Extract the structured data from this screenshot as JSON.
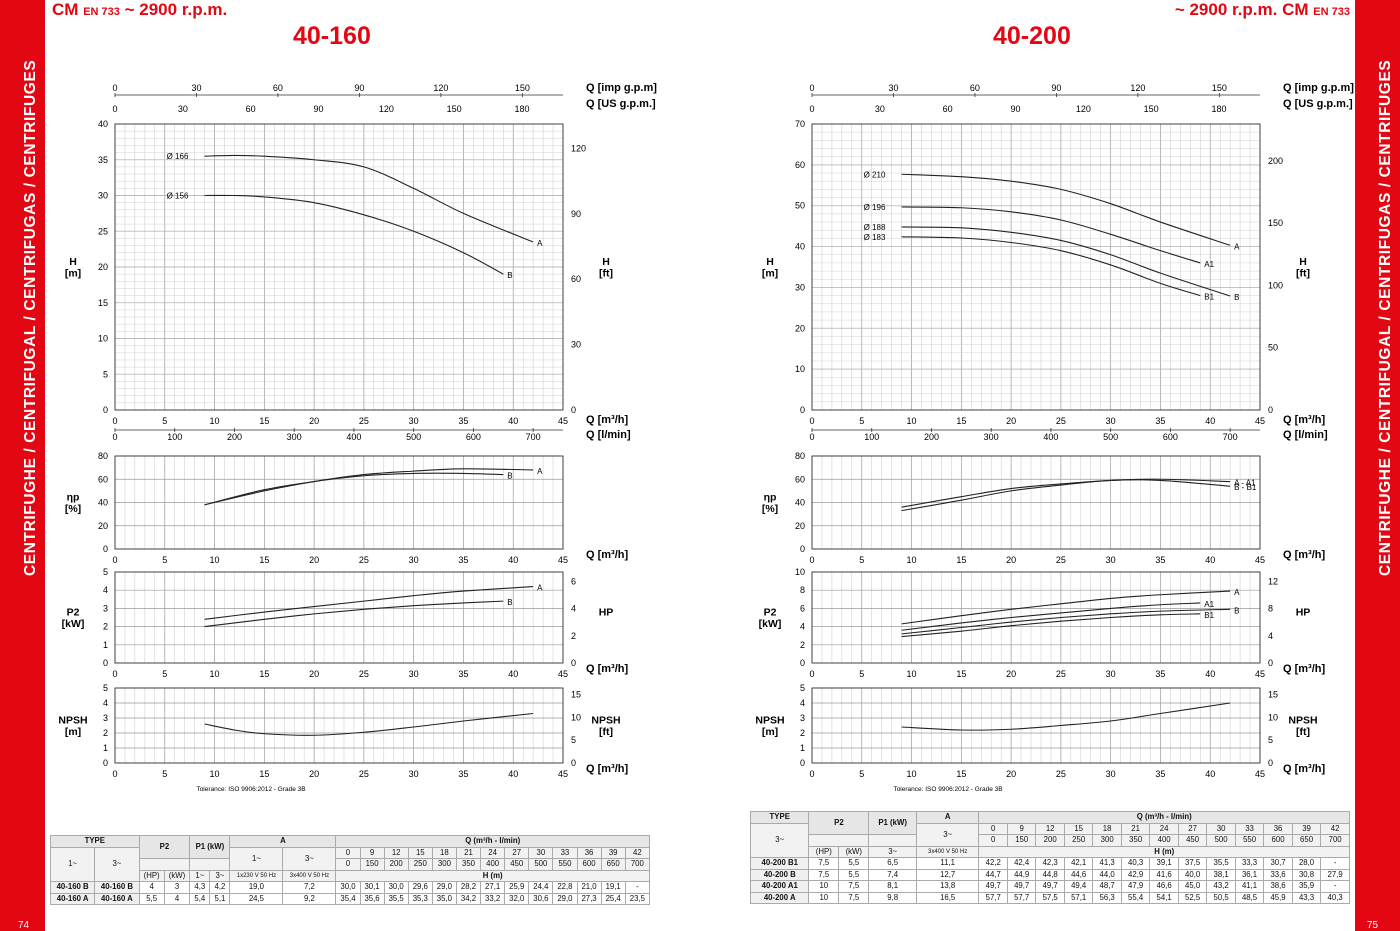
{
  "sidebar": {
    "left_text": "CENTRIFUGHE / CENTRIFUGAL / CENTRIFUGAS / CENTRIFUGES",
    "right_text": "CENTRIFUGHE / CENTRIFUGAL / CENTRIFUGAS / CENTRIFUGES",
    "left_page": "74",
    "right_page": "75"
  },
  "header": {
    "left_series": "CM",
    "left_norm": "EN 733",
    "left_speed": "~ 2900 r.p.m.",
    "right_speed": "~ 2900 r.p.m.",
    "right_series": "CM",
    "right_norm": "EN 733"
  },
  "colors": {
    "accent": "#e30613",
    "grid": "#c8c8c8",
    "curve": "#222222"
  },
  "chart_data": [
    {
      "type": "line",
      "title": "40-160",
      "top_axes": {
        "label1": "Q [imp g.p.m]",
        "ticks1": [
          "0",
          "30",
          "60",
          "90",
          "120",
          "150"
        ],
        "label2": "Q [US g.p.m.]",
        "ticks2": [
          "0",
          "30",
          "60",
          "90",
          "120",
          "150",
          "180"
        ]
      },
      "bottom_axes": {
        "label1": "Q [m³/h]",
        "label2": "Q [l/min]",
        "ticks2": [
          "0",
          "100",
          "200",
          "300",
          "400",
          "500",
          "600",
          "700"
        ]
      },
      "x_ticks": [
        "0",
        "5",
        "10",
        "15",
        "20",
        "25",
        "30",
        "35",
        "40",
        "45"
      ],
      "head": {
        "ylabel": "H\n[m]",
        "ylabel2": "H\n[ft]",
        "ylim": [
          0,
          40
        ],
        "yticks": [
          "0",
          "5",
          "10",
          "15",
          "20",
          "25",
          "30",
          "35",
          "40"
        ],
        "y2ticks": [
          "0",
          "30",
          "60",
          "90",
          "120"
        ],
        "series": [
          {
            "name": "A",
            "diam": "Ø 166",
            "x": [
              9,
              12,
              15,
              20,
              25,
              30,
              35,
              42
            ],
            "y": [
              35.5,
              35.6,
              35.5,
              35.0,
              34.0,
              31.0,
              27.5,
              23.5
            ]
          },
          {
            "name": "B",
            "diam": "Ø 156",
            "x": [
              9,
              12,
              15,
              20,
              25,
              30,
              35,
              39
            ],
            "y": [
              30.0,
              30.0,
              29.8,
              29.0,
              27.3,
              25.0,
              22.0,
              19.0
            ]
          }
        ]
      },
      "eff": {
        "ylabel": "ηp\n[%]",
        "xlabel": "Q [m³/h]",
        "ylim": [
          0,
          80
        ],
        "yticks": [
          "0",
          "20",
          "40",
          "60",
          "80"
        ],
        "series": [
          {
            "name": "A",
            "x": [
              9,
              15,
              20,
              25,
              30,
              35,
              42
            ],
            "y": [
              38,
              50,
              58,
              64,
              67,
              69,
              68
            ]
          },
          {
            "name": "B",
            "x": [
              9,
              15,
              20,
              25,
              30,
              35,
              39
            ],
            "y": [
              38,
              51,
              58,
              63,
              65,
              65,
              64
            ]
          }
        ]
      },
      "power": {
        "ylabel": "P2\n[kW]",
        "ylabel2": "HP",
        "xlabel": "Q [m³/h]",
        "ylim": [
          0,
          5
        ],
        "yticks": [
          "0",
          "1",
          "2",
          "3",
          "4",
          "5"
        ],
        "y2ticks": [
          "0",
          "2",
          "4",
          "6"
        ],
        "series": [
          {
            "name": "A",
            "x": [
              9,
              15,
              20,
              25,
              30,
              35,
              42
            ],
            "y": [
              2.4,
              2.8,
              3.1,
              3.4,
              3.7,
              3.95,
              4.2
            ]
          },
          {
            "name": "B",
            "x": [
              9,
              15,
              20,
              25,
              30,
              35,
              39
            ],
            "y": [
              2.0,
              2.4,
              2.7,
              2.95,
              3.15,
              3.3,
              3.4
            ]
          }
        ]
      },
      "npsh": {
        "ylabel": "NPSH\n[m]",
        "ylabel2": "NPSH\n[ft]",
        "xlabel": "Q [m³/h]",
        "ylim": [
          0,
          5
        ],
        "yticks": [
          "0",
          "1",
          "2",
          "3",
          "4",
          "5"
        ],
        "y2ticks": [
          "0",
          "5",
          "10",
          "15"
        ],
        "series": [
          {
            "name": "",
            "x": [
              9,
              12,
              15,
              20,
              25,
              30,
              35,
              42
            ],
            "y": [
              2.6,
              2.2,
              1.95,
              1.85,
              2.05,
              2.4,
              2.8,
              3.3
            ]
          }
        ]
      },
      "tolerance": "Tolerance: ISO 9906:2012 - Grade 3B"
    },
    {
      "type": "line",
      "title": "40-200",
      "top_axes": {
        "label1": "Q [imp g.p.m]",
        "ticks1": [
          "0",
          "30",
          "60",
          "90",
          "120",
          "150"
        ],
        "label2": "Q [US g.p.m.]",
        "ticks2": [
          "0",
          "30",
          "60",
          "90",
          "120",
          "150",
          "180"
        ]
      },
      "bottom_axes": {
        "label1": "Q [m³/h]",
        "label2": "Q [l/min]",
        "ticks2": [
          "0",
          "100",
          "200",
          "300",
          "400",
          "500",
          "600",
          "700"
        ]
      },
      "x_ticks": [
        "0",
        "5",
        "10",
        "15",
        "20",
        "25",
        "30",
        "35",
        "40",
        "45"
      ],
      "head": {
        "ylabel": "H\n[m]",
        "ylabel2": "H\n[ft]",
        "ylim": [
          0,
          70
        ],
        "yticks": [
          "0",
          "10",
          "20",
          "30",
          "40",
          "50",
          "60",
          "70"
        ],
        "y2ticks": [
          "0",
          "50",
          "100",
          "150",
          "200"
        ],
        "series": [
          {
            "name": "A",
            "diam": "Ø 210",
            "x": [
              9,
              15,
              20,
              25,
              30,
              35,
              42
            ],
            "y": [
              57.7,
              57.1,
              56.0,
              54.0,
              50.5,
              46.0,
              40.3
            ]
          },
          {
            "name": "A1",
            "diam": "Ø 196",
            "x": [
              9,
              15,
              20,
              25,
              30,
              35,
              39
            ],
            "y": [
              49.7,
              49.5,
              48.5,
              46.5,
              43.0,
              39.0,
              36.0
            ]
          },
          {
            "name": "B",
            "diam": "Ø 188",
            "x": [
              9,
              15,
              20,
              25,
              30,
              35,
              42
            ],
            "y": [
              44.8,
              44.6,
              43.5,
              41.5,
              38.0,
              33.5,
              27.9
            ]
          },
          {
            "name": "B1",
            "diam": "Ø 183",
            "x": [
              9,
              15,
              20,
              25,
              30,
              35,
              39
            ],
            "y": [
              42.4,
              42.1,
              41.0,
              39.0,
              35.5,
              31.0,
              28.0
            ]
          }
        ]
      },
      "eff": {
        "ylabel": "ηp\n[%]",
        "xlabel": "Q [m³/h]",
        "ylim": [
          0,
          80
        ],
        "yticks": [
          "0",
          "20",
          "40",
          "60",
          "80"
        ],
        "series": [
          {
            "name": "A - A1",
            "x": [
              9,
              15,
              20,
              25,
              30,
              35,
              42
            ],
            "y": [
              36,
              45,
              52,
              56,
              59,
              60,
              58
            ]
          },
          {
            "name": "B - B1",
            "x": [
              9,
              15,
              20,
              25,
              30,
              35,
              42
            ],
            "y": [
              33,
              42,
              50,
              55,
              59,
              59,
              54
            ]
          }
        ]
      },
      "power": {
        "ylabel": "P2\n[kW]",
        "ylabel2": "HP",
        "xlabel": "Q [m³/h]",
        "ylim": [
          0,
          10
        ],
        "yticks": [
          "0",
          "2",
          "4",
          "6",
          "8",
          "10"
        ],
        "y2ticks": [
          "0",
          "4",
          "8",
          "12"
        ],
        "series": [
          {
            "name": "A",
            "x": [
              9,
              15,
              20,
              25,
              30,
              35,
              42
            ],
            "y": [
              4.3,
              5.2,
              5.9,
              6.5,
              7.1,
              7.5,
              7.9
            ]
          },
          {
            "name": "A1",
            "x": [
              9,
              15,
              20,
              25,
              30,
              35,
              39
            ],
            "y": [
              3.6,
              4.4,
              5.0,
              5.5,
              6.0,
              6.4,
              6.6
            ]
          },
          {
            "name": "B",
            "x": [
              9,
              15,
              20,
              25,
              30,
              35,
              42
            ],
            "y": [
              3.2,
              3.9,
              4.5,
              5.0,
              5.4,
              5.7,
              5.9
            ]
          },
          {
            "name": "B1",
            "x": [
              9,
              15,
              20,
              25,
              30,
              35,
              39
            ],
            "y": [
              2.9,
              3.5,
              4.1,
              4.6,
              5.0,
              5.3,
              5.4
            ]
          }
        ]
      },
      "npsh": {
        "ylabel": "NPSH\n[m]",
        "ylabel2": "NPSH\n[ft]",
        "xlabel": "Q [m³/h]",
        "ylim": [
          0,
          5
        ],
        "yticks": [
          "0",
          "1",
          "2",
          "3",
          "4",
          "5"
        ],
        "y2ticks": [
          "0",
          "5",
          "10",
          "15"
        ],
        "series": [
          {
            "name": "",
            "x": [
              9,
              15,
              20,
              25,
              30,
              35,
              42
            ],
            "y": [
              2.4,
              2.2,
              2.25,
              2.5,
              2.8,
              3.3,
              4.0
            ]
          }
        ]
      },
      "tolerance": "Tolerance: ISO 9906:2012 - Grade 3B"
    }
  ],
  "tables": {
    "left": {
      "type_label": "TYPE",
      "ph1": "1~",
      "ph3": "3~",
      "p2": "P2",
      "p1": "P1\n(kW)",
      "a": "A",
      "a1": "1~",
      "a3": "3~",
      "hp": "(HP)",
      "kw": "(kW)",
      "v1": "1x230 V\n50 Hz",
      "v3": "3x400 V\n50 Hz",
      "q_label": "Q (m³/h - l/min)",
      "h_label": "H (m)",
      "q": [
        "0",
        "9",
        "12",
        "15",
        "18",
        "21",
        "24",
        "27",
        "30",
        "33",
        "36",
        "39",
        "42"
      ],
      "lmin": [
        "0",
        "150",
        "200",
        "250",
        "300",
        "350",
        "400",
        "450",
        "500",
        "550",
        "600",
        "650",
        "700"
      ],
      "rows": [
        {
          "t1": "40-160 B",
          "t3": "40-160 B",
          "hp": "4",
          "kw": "3",
          "p1_1": "4,3",
          "p1_3": "4,2",
          "a1": "19,0",
          "a3": "7,2",
          "h": [
            "30,0",
            "30,1",
            "30,0",
            "29,6",
            "29,0",
            "28,2",
            "27,1",
            "25,9",
            "24,4",
            "22,8",
            "21,0",
            "19,1",
            "-"
          ]
        },
        {
          "t1": "40-160 A",
          "t3": "40-160 A",
          "hp": "5,5",
          "kw": "4",
          "p1_1": "5,4",
          "p1_3": "5,1",
          "a1": "24,5",
          "a3": "9,2",
          "h": [
            "35,4",
            "35,6",
            "35,5",
            "35,3",
            "35,0",
            "34,2",
            "33,2",
            "32,0",
            "30,6",
            "29,0",
            "27,3",
            "25,4",
            "23,5"
          ]
        }
      ]
    },
    "right": {
      "type_label": "TYPE",
      "ph3": "3~",
      "p2": "P2",
      "p1": "P1\n(kW)",
      "a": "A",
      "a3": "3~",
      "hp": "(HP)",
      "kw": "(kW)",
      "p1_3": "3~",
      "v3": "3x400 V\n50 Hz",
      "q_label": "Q (m³/h - l/min)",
      "h_label": "H (m)",
      "q": [
        "0",
        "9",
        "12",
        "15",
        "18",
        "21",
        "24",
        "27",
        "30",
        "33",
        "36",
        "39",
        "42"
      ],
      "lmin": [
        "0",
        "150",
        "200",
        "250",
        "300",
        "350",
        "400",
        "450",
        "500",
        "550",
        "600",
        "650",
        "700"
      ],
      "rows": [
        {
          "t": "40-200 B1",
          "hp": "7,5",
          "kw": "5,5",
          "p1": "6,5",
          "a": "11,1",
          "h": [
            "42,2",
            "42,4",
            "42,3",
            "42,1",
            "41,3",
            "40,3",
            "39,1",
            "37,5",
            "35,5",
            "33,3",
            "30,7",
            "28,0",
            "-"
          ]
        },
        {
          "t": "40-200 B",
          "hp": "7,5",
          "kw": "5,5",
          "p1": "7,4",
          "a": "12,7",
          "h": [
            "44,7",
            "44,9",
            "44,8",
            "44,6",
            "44,0",
            "42,9",
            "41,6",
            "40,0",
            "38,1",
            "36,1",
            "33,6",
            "30,8",
            "27,9"
          ]
        },
        {
          "t": "40-200 A1",
          "hp": "10",
          "kw": "7,5",
          "p1": "8,1",
          "a": "13,8",
          "h": [
            "49,7",
            "49,7",
            "49,7",
            "49,4",
            "48,7",
            "47,9",
            "46,6",
            "45,0",
            "43,2",
            "41,1",
            "38,6",
            "35,9",
            "-"
          ]
        },
        {
          "t": "40-200 A",
          "hp": "10",
          "kw": "7,5",
          "p1": "9,8",
          "a": "16,5",
          "h": [
            "57,7",
            "57,7",
            "57,5",
            "57,1",
            "56,3",
            "55,4",
            "54,1",
            "52,5",
            "50,5",
            "48,5",
            "45,9",
            "43,3",
            "40,3"
          ]
        }
      ]
    }
  }
}
